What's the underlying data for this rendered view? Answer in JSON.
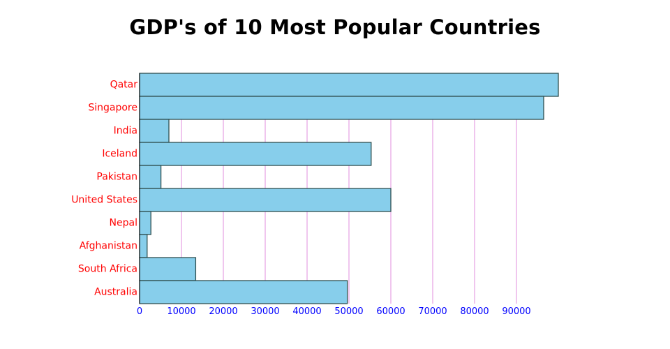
{
  "chart_data": {
    "type": "bar",
    "orientation": "horizontal",
    "title": "GDP's of 10 Most Popular Countries",
    "xlabel": "",
    "ylabel": "",
    "categories": [
      "Qatar",
      "Singapore",
      "India",
      "Iceland",
      "Pakistan",
      "United States",
      "Nepal",
      "Afghanistan",
      "South Africa",
      "Australia"
    ],
    "values": [
      100000,
      96500,
      7000,
      55300,
      5100,
      60000,
      2700,
      1800,
      13400,
      49600
    ],
    "xlim": [
      0,
      100000
    ],
    "xticks": [
      0,
      10000,
      20000,
      30000,
      40000,
      50000,
      60000,
      70000,
      80000,
      90000
    ],
    "xtick_labels": [
      "0",
      "10000",
      "20000",
      "30000",
      "40000",
      "50000",
      "60000",
      "70000",
      "80000",
      "90000"
    ],
    "grid": "vertical",
    "legend": "none",
    "colors": {
      "bar_fill": "#87CEEB",
      "bar_stroke": "#2F4F4F",
      "gridline": "#DA70D6",
      "category_label": "#FF0000",
      "tick_label": "#0000FF",
      "axis_line": "#000000"
    }
  }
}
